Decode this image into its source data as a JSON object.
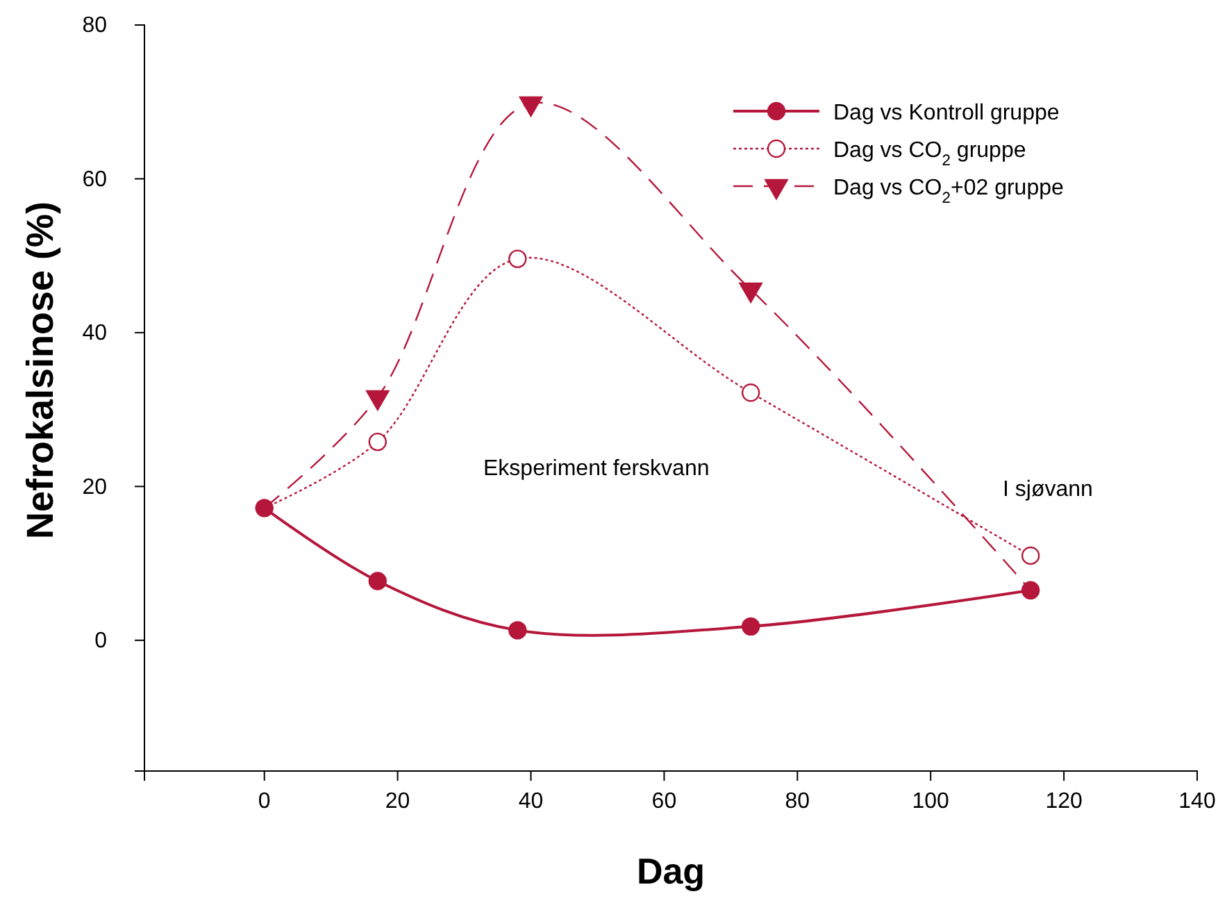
{
  "chart_data": {
    "type": "line",
    "xlabel": "Dag",
    "ylabel": "Nefrokalsinose (%)",
    "xlim": [
      -18,
      140
    ],
    "ylim": [
      -17,
      80
    ],
    "xticks": [
      0,
      20,
      40,
      60,
      80,
      100,
      120,
      140
    ],
    "yticks": [
      0,
      20,
      40,
      60,
      80
    ],
    "grid": false,
    "legend": "top right",
    "annotations": [
      "Eksperiment ferskvann",
      "I sjøvann"
    ],
    "series": [
      {
        "name": "Dag vs Kontroll gruppe",
        "color": "#b5173b",
        "x": [
          0,
          17,
          38,
          73,
          115
        ],
        "values": [
          17.2,
          7.7,
          1.3,
          1.8,
          6.5
        ],
        "marker": "circle",
        "line_style": "solid"
      },
      {
        "name": "Dag vs CO$_{2}$ gruppe",
        "color": "#b5173b",
        "x": [
          0,
          17,
          38,
          73,
          115
        ],
        "values": [
          17.2,
          25.8,
          49.6,
          32.2,
          11
        ],
        "marker": "circle",
        "line_style": "dotted"
      },
      {
        "name": "Dag vs CO$_{2}$+02  gruppe",
        "color": "#b5173b",
        "x": [
          0,
          17,
          40,
          73,
          115
        ],
        "values": [
          17.2,
          31.6,
          69.8,
          45.6,
          6.5
        ],
        "marker": "triangle",
        "line_style": "dashed"
      }
    ]
  }
}
